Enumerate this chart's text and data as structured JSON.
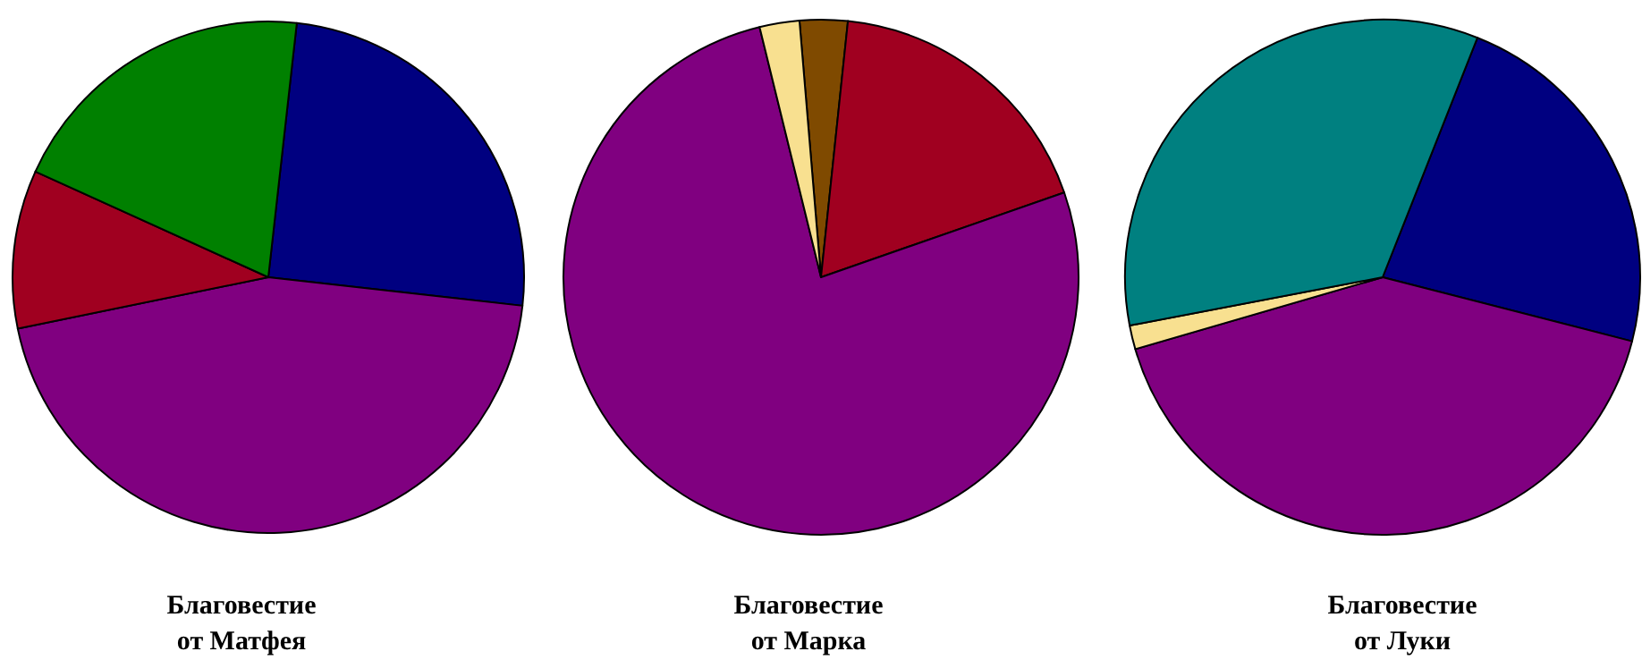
{
  "chart_data": [
    {
      "type": "pie",
      "title": "Благовестие от Матфея",
      "categories": [
        null,
        null,
        null,
        null
      ],
      "values": [
        25,
        45,
        10,
        20
      ],
      "colors": [
        "#000080",
        "#800080",
        "#a00020",
        "#008000"
      ]
    },
    {
      "type": "pie",
      "title": "Благовестие от Марка",
      "categories": [
        null,
        null,
        null,
        null
      ],
      "values": [
        3,
        18,
        76.5,
        2.5
      ],
      "colors": [
        "#7f4a00",
        "#a00020",
        "#800080",
        "#f8e090"
      ]
    },
    {
      "type": "pie",
      "title": "Благовестие от Луки",
      "categories": [
        null,
        null,
        null,
        null
      ],
      "values": [
        23,
        41.5,
        1.5,
        34
      ],
      "colors": [
        "#000080",
        "#800080",
        "#f8e090",
        "#008080"
      ]
    }
  ]
}
